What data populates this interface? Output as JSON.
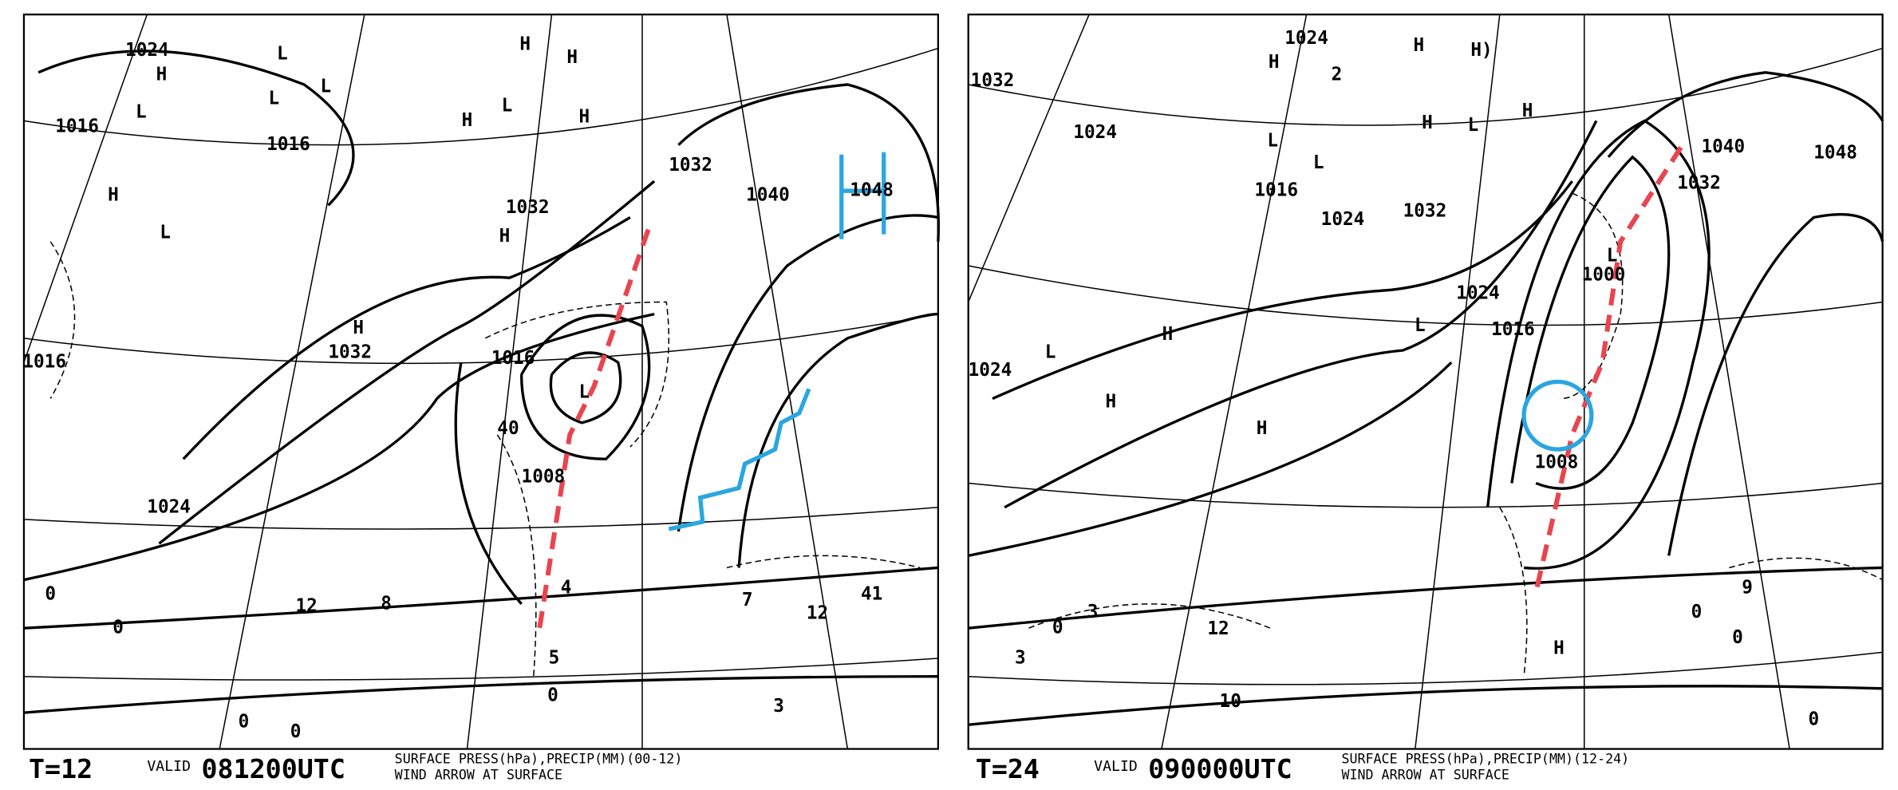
{
  "panels": [
    {
      "labels": [
        "1024",
        "H",
        "L",
        "L",
        "L",
        "L",
        "1016",
        "1016",
        "H",
        "H",
        "H",
        "L",
        "H",
        "1032",
        "H",
        "1032",
        "1040",
        "1048",
        "H",
        "L",
        "H",
        "1032",
        "1016",
        "L",
        "1008",
        "1024",
        "1016",
        "40",
        "12",
        "8",
        "4",
        "5",
        "0",
        "0",
        "0",
        "7",
        "12",
        "41",
        "3",
        "0",
        "0"
      ],
      "footer": {
        "step": "T=12",
        "valid": "VALID",
        "time": "081200UTC",
        "desc1": "SURFACE PRESS(hPa),PRECIP(MM)(00-12)",
        "desc2": "WIND ARROW AT SURFACE"
      }
    },
    {
      "labels": [
        "1024",
        "H",
        "2",
        "H",
        "H)",
        "1032",
        "1024",
        "L",
        "L",
        "1016",
        "1024",
        "1032",
        "H",
        "L",
        "H",
        "1040",
        "1048",
        "1032",
        "1024",
        "1016",
        "L",
        "1000",
        "L",
        "H",
        "L",
        "H",
        "H",
        "1024",
        "1008",
        "H",
        "3",
        "12",
        "3",
        "0",
        "10",
        "9",
        "0",
        "0",
        "0"
      ],
      "footer": {
        "step": "T=24",
        "valid": "VALID",
        "time": "090000UTC",
        "desc1": "SURFACE PRESS(hPa),PRECIP(MM)(12-24)",
        "desc2": "WIND ARROW AT SURFACE"
      }
    }
  ]
}
